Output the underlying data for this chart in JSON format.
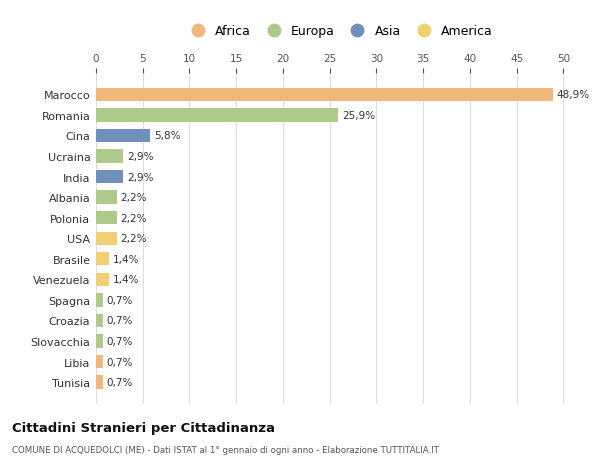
{
  "categories": [
    "Marocco",
    "Romania",
    "Cina",
    "Ucraina",
    "India",
    "Albania",
    "Polonia",
    "USA",
    "Brasile",
    "Venezuela",
    "Spagna",
    "Croazia",
    "Slovacchia",
    "Libia",
    "Tunisia"
  ],
  "values": [
    48.9,
    25.9,
    5.8,
    2.9,
    2.9,
    2.2,
    2.2,
    2.2,
    1.4,
    1.4,
    0.7,
    0.7,
    0.7,
    0.7,
    0.7
  ],
  "labels": [
    "48,9%",
    "25,9%",
    "5,8%",
    "2,9%",
    "2,9%",
    "2,2%",
    "2,2%",
    "2,2%",
    "1,4%",
    "1,4%",
    "0,7%",
    "0,7%",
    "0,7%",
    "0,7%",
    "0,7%"
  ],
  "colors": [
    "#F0B87A",
    "#AECA8A",
    "#7090BB",
    "#AECA8A",
    "#7090BB",
    "#AECA8A",
    "#AECA8A",
    "#F0D070",
    "#F0D070",
    "#F0D070",
    "#AECA8A",
    "#AECA8A",
    "#AECA8A",
    "#F0B87A",
    "#F0B87A"
  ],
  "legend": [
    {
      "label": "Africa",
      "color": "#F0B87A"
    },
    {
      "label": "Europa",
      "color": "#AECA8A"
    },
    {
      "label": "Asia",
      "color": "#7090BB"
    },
    {
      "label": "America",
      "color": "#F0D070"
    }
  ],
  "xlim": [
    0,
    52
  ],
  "xticks": [
    0,
    5,
    10,
    15,
    20,
    25,
    30,
    35,
    40,
    45,
    50
  ],
  "title": "Cittadini Stranieri per Cittadinanza",
  "subtitle": "COMUNE DI ACQUEDOLCI (ME) - Dati ISTAT al 1° gennaio di ogni anno - Elaborazione TUTTITALIA.IT",
  "bg_color": "#FFFFFF",
  "grid_color": "#DDDDDD"
}
